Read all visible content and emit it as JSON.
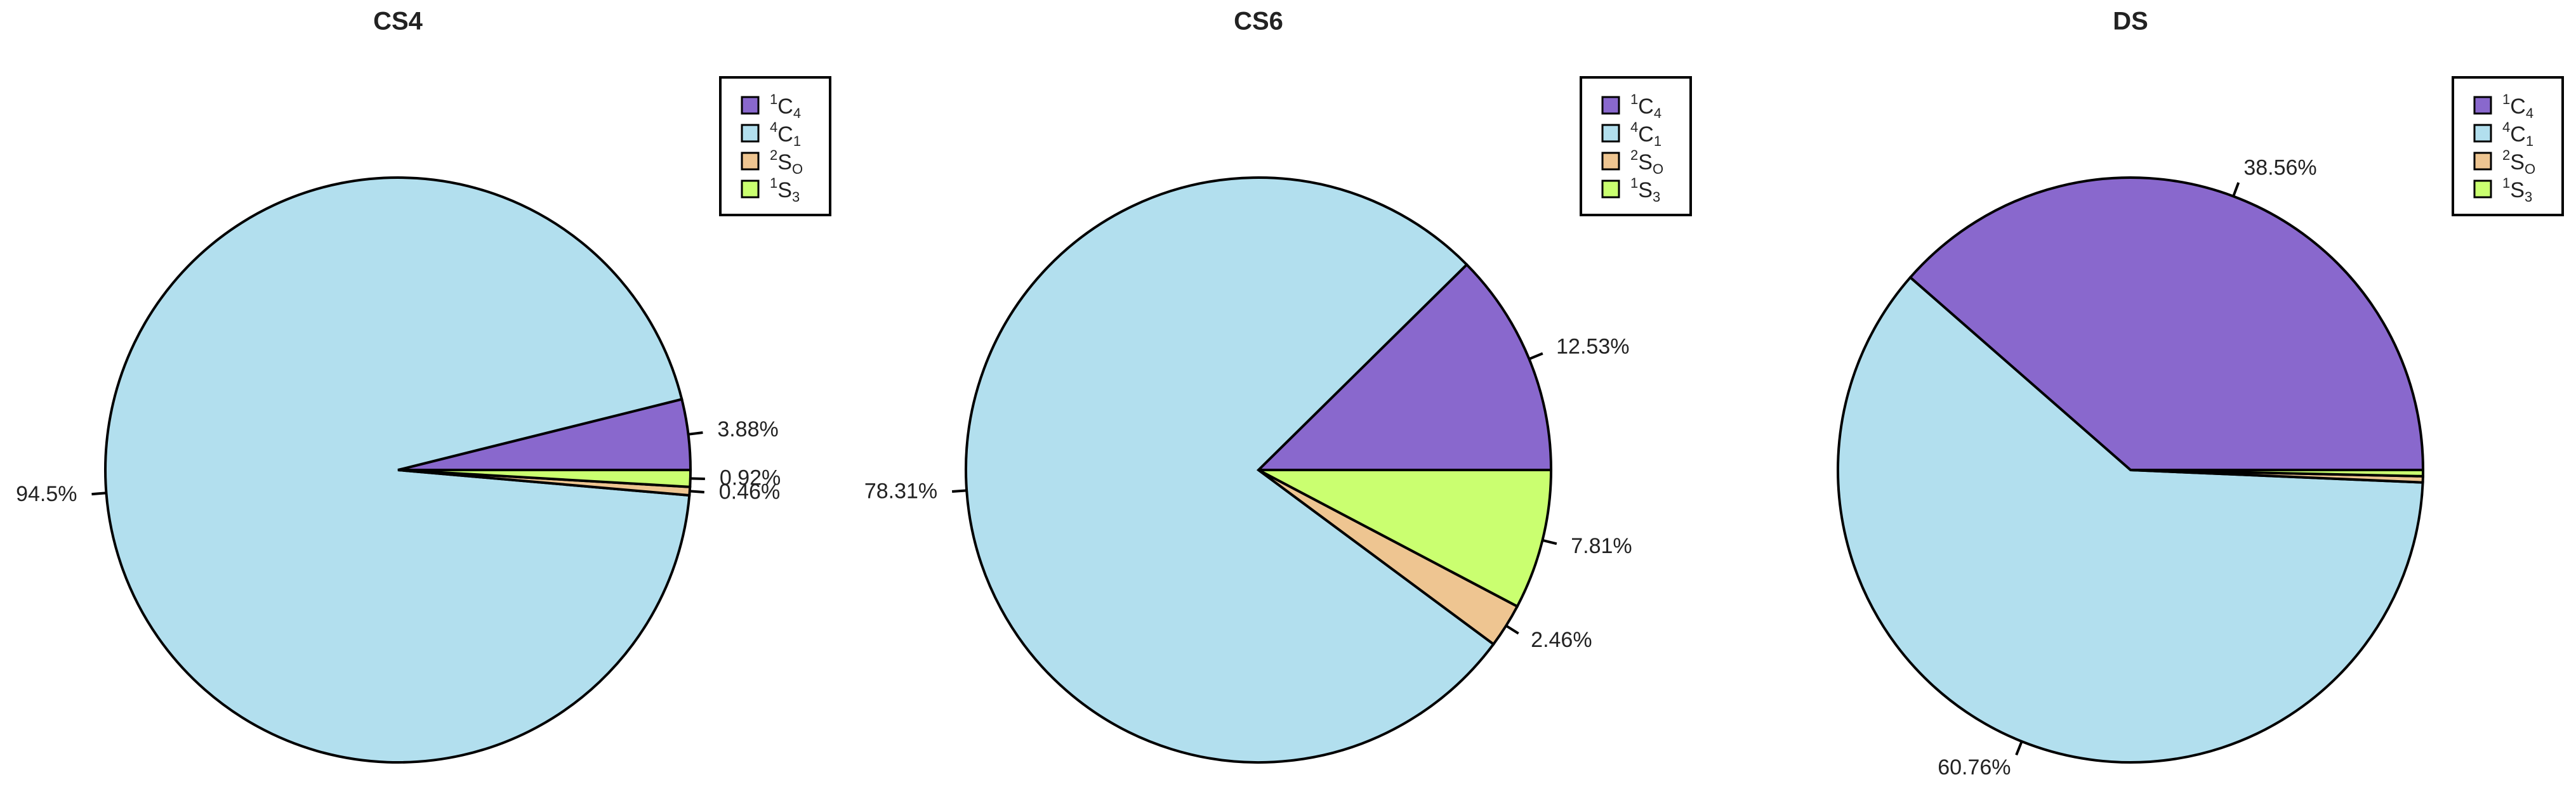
{
  "chart_data": [
    {
      "type": "pie",
      "title": "CS4",
      "labels": [
        {
          "sup": "1",
          "base": "C",
          "sub": "4"
        },
        {
          "sup": "4",
          "base": "C",
          "sub": "1"
        },
        {
          "sup": "2",
          "base": "S",
          "sub": "O"
        },
        {
          "sup": "1",
          "base": "S",
          "sub": "3"
        }
      ],
      "colors": [
        "#8968CD",
        "#B2DFEE",
        "#EEC591",
        "#CAFF70"
      ],
      "values": [
        3.88,
        94.5,
        0.46,
        0.92
      ],
      "value_labels": [
        "3.88%",
        "94.5%",
        "0.46%",
        "0.92%"
      ],
      "legend": "topright"
    },
    {
      "type": "pie",
      "title": "CS6",
      "labels": [
        {
          "sup": "1",
          "base": "C",
          "sub": "4"
        },
        {
          "sup": "4",
          "base": "C",
          "sub": "1"
        },
        {
          "sup": "2",
          "base": "S",
          "sub": "O"
        },
        {
          "sup": "1",
          "base": "S",
          "sub": "3"
        }
      ],
      "colors": [
        "#8968CD",
        "#B2DFEE",
        "#EEC591",
        "#CAFF70"
      ],
      "values": [
        12.53,
        78.31,
        2.46,
        7.81
      ],
      "value_labels": [
        "12.53%",
        "78.31%",
        "2.46%",
        "7.81%"
      ],
      "legend": "topright"
    },
    {
      "type": "pie",
      "title": "DS",
      "labels": [
        {
          "sup": "1",
          "base": "C",
          "sub": "4"
        },
        {
          "sup": "4",
          "base": "C",
          "sub": "1"
        },
        {
          "sup": "2",
          "base": "S",
          "sub": "O"
        },
        {
          "sup": "1",
          "base": "S",
          "sub": "3"
        }
      ],
      "colors": [
        "#8968CD",
        "#B2DFEE",
        "#EEC591",
        "#CAFF70"
      ],
      "values": [
        38.56,
        60.76,
        0.34,
        0.34
      ],
      "value_labels": [
        "38.56%",
        "60.76%",
        null,
        null
      ],
      "legend": "topright"
    }
  ]
}
